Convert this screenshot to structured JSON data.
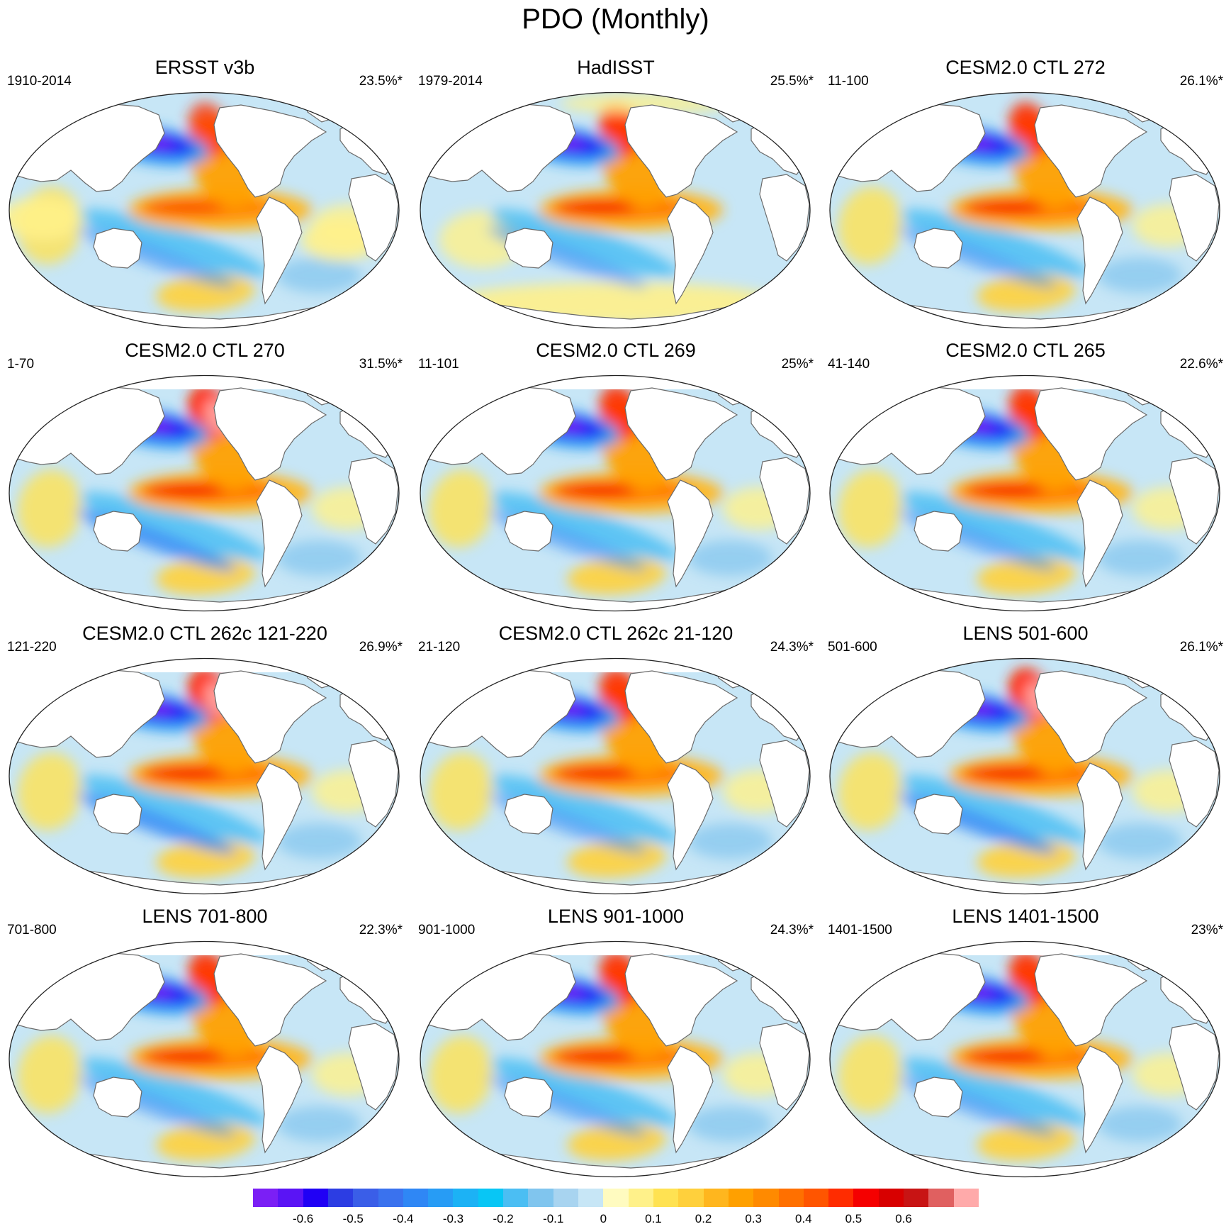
{
  "title": "PDO (Monthly)",
  "panels": [
    {
      "title": "ERSST v3b",
      "period": "1910-2014",
      "variance": "23.5%*",
      "variant": 0,
      "arctic": "blue"
    },
    {
      "title": "HadISST",
      "period": "1979-2014",
      "variance": "25.5%*",
      "variant": 1,
      "arctic": "mixed"
    },
    {
      "title": "CESM2.0 CTL 272",
      "period": "11-100",
      "variance": "26.1%*",
      "variant": 2,
      "arctic": "blue"
    },
    {
      "title": "CESM2.0 CTL 270",
      "period": "1-70",
      "variance": "31.5%*",
      "variant": 3,
      "arctic": "white"
    },
    {
      "title": "CESM2.0 CTL 269",
      "period": "11-101",
      "variance": "25%*",
      "variant": 2,
      "arctic": "white"
    },
    {
      "title": "CESM2.0 CTL 265",
      "period": "41-140",
      "variance": "22.6%*",
      "variant": 2,
      "arctic": "white"
    },
    {
      "title": "CESM2.0 CTL 262c 121-220",
      "period": "121-220",
      "variance": "26.9%*",
      "variant": 3,
      "arctic": "white"
    },
    {
      "title": "CESM2.0 CTL 262c 21-120",
      "period": "21-120",
      "variance": "24.3%*",
      "variant": 2,
      "arctic": "white"
    },
    {
      "title": "LENS 501-600",
      "period": "501-600",
      "variance": "26.1%*",
      "variant": 3,
      "arctic": "blue"
    },
    {
      "title": "LENS 701-800",
      "period": "701-800",
      "variance": "22.3%*",
      "variant": 2,
      "arctic": "white"
    },
    {
      "title": "LENS 901-1000",
      "period": "901-1000",
      "variance": "24.3%*",
      "variant": 2,
      "arctic": "white"
    },
    {
      "title": "LENS 1401-1500",
      "period": "1401-1500",
      "variance": "23%*",
      "variant": 2,
      "arctic": "white"
    }
  ],
  "colorbar": {
    "colors": [
      "#7b1ff5",
      "#5a14f5",
      "#2000f5",
      "#2c3de3",
      "#3a5ee8",
      "#3a72ee",
      "#2f87f5",
      "#279cf5",
      "#1cb2f5",
      "#08c6f5",
      "#4bbef3",
      "#80c5ee",
      "#a8d4f0",
      "#c7e6f6",
      "#fffbc0",
      "#fff18a",
      "#ffe252",
      "#ffd03c",
      "#ffb61e",
      "#ffa000",
      "#ff8a00",
      "#ff7000",
      "#ff5500",
      "#ff2c00",
      "#f50000",
      "#d80000",
      "#c81414",
      "#e06060",
      "#ffaaaa"
    ],
    "labels": [
      {
        "text": "-0.6",
        "boundary": 2
      },
      {
        "text": "-0.5",
        "boundary": 4
      },
      {
        "text": "-0.4",
        "boundary": 6
      },
      {
        "text": "-0.3",
        "boundary": 8
      },
      {
        "text": "-0.2",
        "boundary": 10
      },
      {
        "text": "-0.1",
        "boundary": 12
      },
      {
        "text": "0",
        "boundary": 14
      },
      {
        "text": "0.1",
        "boundary": 16
      },
      {
        "text": "0.2",
        "boundary": 18
      },
      {
        "text": "0.3",
        "boundary": 20
      },
      {
        "text": "0.4",
        "boundary": 22
      },
      {
        "text": "0.5",
        "boundary": 24
      },
      {
        "text": "0.6",
        "boundary": 26
      }
    ]
  }
}
